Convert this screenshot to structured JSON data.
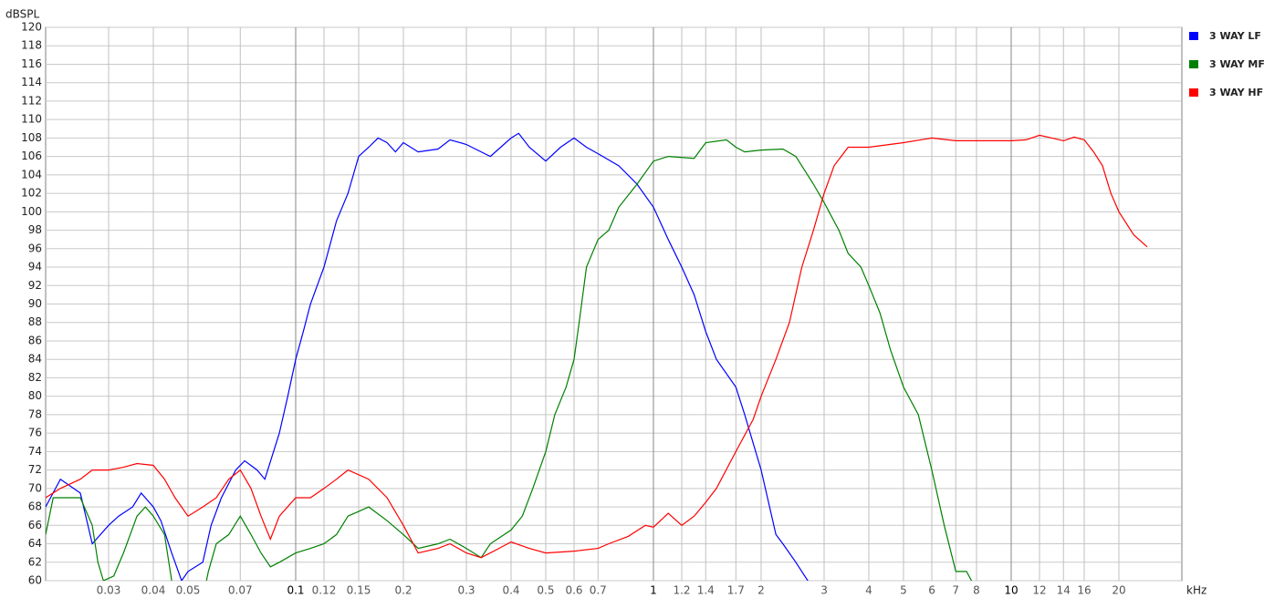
{
  "chart_data": {
    "type": "line",
    "y_label": "dBSPL",
    "x_label": "kHz",
    "x_log": true,
    "grid": true,
    "legend": "right",
    "xlim": [
      0.02,
      30
    ],
    "ylim": [
      60,
      120
    ],
    "xticks": [
      0.03,
      0.04,
      0.05,
      0.07,
      0.1,
      0.12,
      0.15,
      0.2,
      0.3,
      0.4,
      0.5,
      0.6,
      0.7,
      1,
      1.2,
      1.4,
      1.7,
      2,
      3,
      4,
      5,
      6,
      7,
      8,
      10,
      12,
      14,
      16,
      20
    ],
    "yticks": [
      60,
      62,
      64,
      66,
      68,
      70,
      72,
      74,
      76,
      78,
      80,
      82,
      84,
      86,
      88,
      90,
      92,
      94,
      96,
      98,
      100,
      102,
      104,
      106,
      108,
      110,
      112,
      114,
      116,
      118,
      120
    ],
    "series": [
      {
        "name": "3 WAY LF",
        "color": "#0000ff",
        "x": [
          0.02,
          0.022,
          0.025,
          0.027,
          0.03,
          0.032,
          0.035,
          0.037,
          0.04,
          0.042,
          0.045,
          0.048,
          0.05,
          0.055,
          0.058,
          0.062,
          0.068,
          0.072,
          0.078,
          0.082,
          0.09,
          0.095,
          0.1,
          0.105,
          0.11,
          0.12,
          0.13,
          0.14,
          0.15,
          0.16,
          0.17,
          0.18,
          0.19,
          0.2,
          0.22,
          0.25,
          0.27,
          0.3,
          0.35,
          0.4,
          0.42,
          0.45,
          0.5,
          0.55,
          0.6,
          0.65,
          0.7,
          0.8,
          0.9,
          1,
          1.1,
          1.2,
          1.3,
          1.4,
          1.5,
          1.7,
          1.8,
          2,
          2.2,
          2.3,
          2.5,
          2.7,
          2.9
        ],
        "values": [
          68,
          71,
          69.5,
          64,
          66,
          67,
          68,
          69.5,
          68,
          66.5,
          63,
          60,
          61,
          62,
          66,
          69,
          72,
          73,
          72,
          71,
          76,
          80,
          84,
          87,
          90,
          94,
          99,
          102,
          106,
          107,
          108,
          107.5,
          106.5,
          107.5,
          106.5,
          106.8,
          107.8,
          107.3,
          106,
          108,
          108.5,
          107,
          105.5,
          107,
          108,
          107,
          106.3,
          105,
          103,
          100.5,
          97,
          94,
          91,
          87,
          84,
          81,
          78,
          72,
          65,
          64,
          62,
          60,
          58
        ]
      },
      {
        "name": "3 WAY MF",
        "color": "#008000",
        "x": [
          0.02,
          0.021,
          0.025,
          0.027,
          0.028,
          0.029,
          0.031,
          0.033,
          0.036,
          0.038,
          0.04,
          0.043,
          0.045,
          0.047,
          0.055,
          0.057,
          0.06,
          0.065,
          0.07,
          0.075,
          0.08,
          0.085,
          0.09,
          0.1,
          0.11,
          0.12,
          0.13,
          0.14,
          0.15,
          0.16,
          0.18,
          0.2,
          0.22,
          0.25,
          0.27,
          0.3,
          0.33,
          0.35,
          0.4,
          0.43,
          0.46,
          0.5,
          0.53,
          0.57,
          0.6,
          0.62,
          0.65,
          0.7,
          0.75,
          0.8,
          0.9,
          1,
          1.1,
          1.3,
          1.4,
          1.6,
          1.7,
          1.8,
          2,
          2.3,
          2.5,
          2.8,
          3,
          3.3,
          3.5,
          3.8,
          4,
          4.3,
          4.6,
          5,
          5.5,
          6,
          6.5,
          7,
          7.5,
          8
        ],
        "values": [
          65,
          69,
          69,
          66,
          62,
          60,
          60.5,
          63,
          67,
          68,
          67,
          65,
          60,
          58,
          58,
          61,
          64,
          65,
          67,
          65,
          63,
          61.5,
          62,
          63,
          63.5,
          64,
          65,
          67,
          67.5,
          68,
          66.5,
          65,
          63.5,
          64,
          64.5,
          63.5,
          62.5,
          64,
          65.5,
          67,
          70,
          74,
          78,
          81,
          84,
          88,
          94,
          97,
          98,
          100.5,
          103,
          105.5,
          106,
          105.8,
          107.5,
          107.8,
          107,
          106.5,
          106.7,
          106.8,
          106,
          103,
          101,
          98,
          95.5,
          94,
          92,
          89,
          85,
          81,
          78,
          72,
          66,
          61,
          61,
          59
        ]
      },
      {
        "name": "3 WAY HF",
        "color": "#ff0000",
        "x": [
          0.02,
          0.022,
          0.025,
          0.027,
          0.03,
          0.033,
          0.036,
          0.04,
          0.043,
          0.046,
          0.05,
          0.055,
          0.06,
          0.065,
          0.07,
          0.075,
          0.08,
          0.085,
          0.09,
          0.1,
          0.11,
          0.12,
          0.13,
          0.14,
          0.16,
          0.18,
          0.2,
          0.22,
          0.25,
          0.27,
          0.3,
          0.33,
          0.37,
          0.4,
          0.45,
          0.5,
          0.6,
          0.7,
          0.75,
          0.85,
          0.95,
          1,
          1.1,
          1.2,
          1.3,
          1.4,
          1.5,
          1.7,
          1.9,
          2,
          2.2,
          2.4,
          2.6,
          2.8,
          3,
          3.2,
          3.5,
          4,
          5,
          6,
          7,
          8,
          10,
          11,
          12,
          13,
          14,
          15,
          16,
          17,
          18,
          19,
          20,
          22,
          24
        ],
        "values": [
          69,
          70,
          71,
          72,
          72,
          72.3,
          72.7,
          72.5,
          71,
          69,
          67,
          68,
          69,
          71,
          72,
          70,
          67,
          64.5,
          67,
          69,
          69,
          70,
          71,
          72,
          71,
          69,
          66,
          63,
          63.5,
          64,
          63,
          62.5,
          63.5,
          64.2,
          63.5,
          63,
          63.2,
          63.5,
          64,
          64.8,
          66,
          65.8,
          67.3,
          66,
          67,
          68.5,
          70,
          74,
          77.5,
          80,
          84,
          88,
          94,
          98,
          102,
          105,
          107,
          107,
          107.5,
          108,
          107.7,
          107.7,
          107.7,
          107.8,
          108.3,
          108,
          107.7,
          108.1,
          107.8,
          106.5,
          105,
          102,
          100,
          97.5,
          96.2
        ]
      }
    ]
  }
}
